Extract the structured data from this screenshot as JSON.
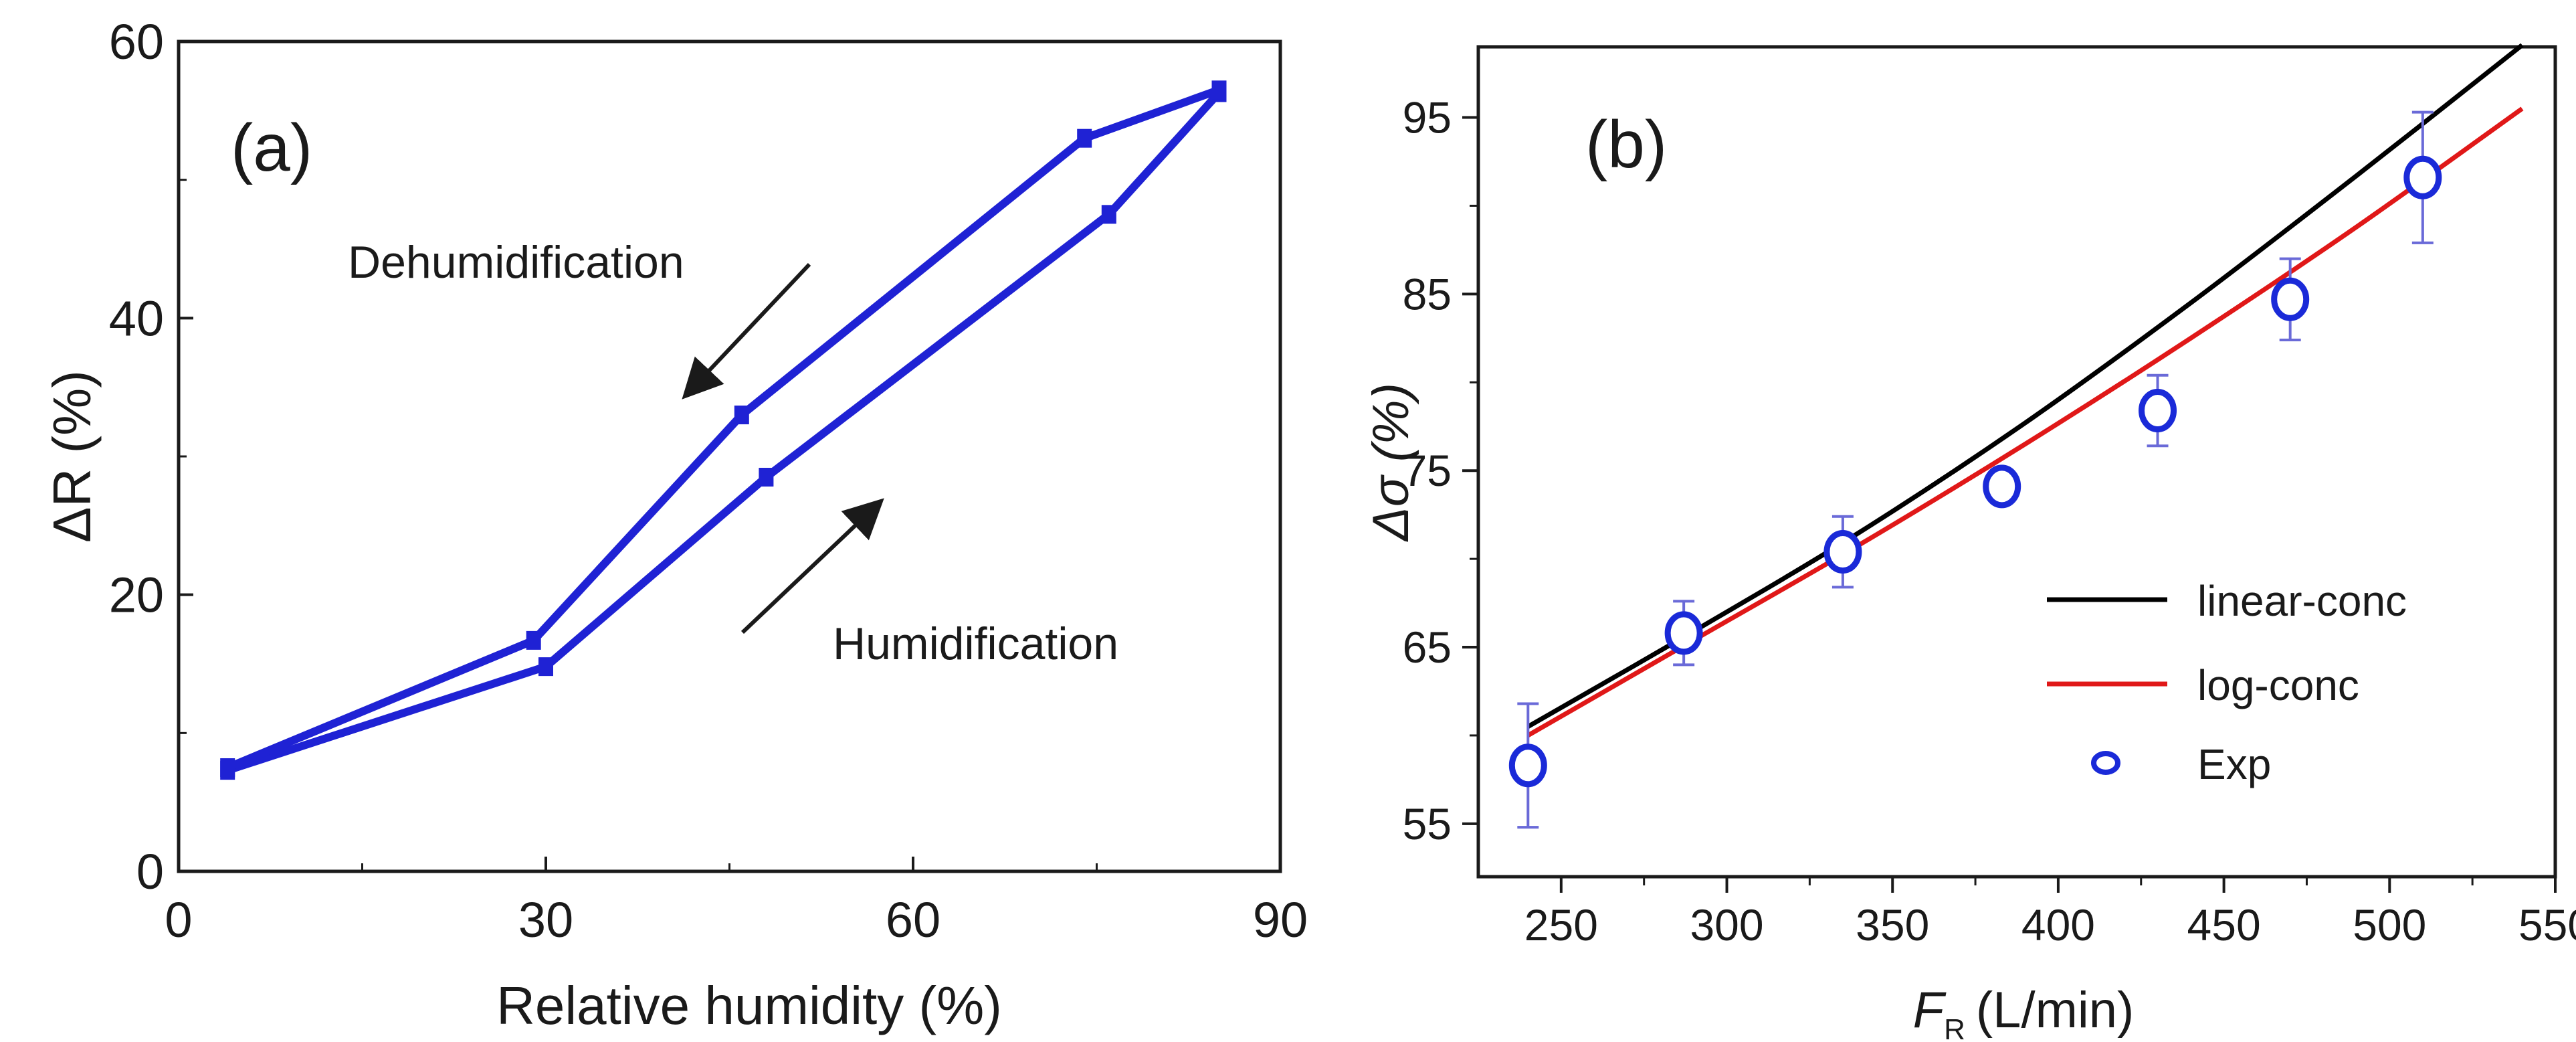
{
  "chart_data": [
    {
      "panel": "a",
      "type": "line",
      "panel_label": "(a)",
      "xlabel": "Relative humidity (%)",
      "ylabel": "ΔR (%)",
      "xlim": [
        0,
        90
      ],
      "ylim": [
        0,
        60
      ],
      "xticks": [
        0,
        30,
        60,
        90
      ],
      "yticks": [
        0,
        20,
        40,
        60
      ],
      "color": "#1f22d4",
      "series": [
        {
          "name": "Humidification",
          "x": [
            4,
            30,
            48,
            76,
            85
          ],
          "y": [
            7.3,
            14.8,
            28.5,
            47.5,
            56.3
          ]
        },
        {
          "name": "Dehumidification",
          "x": [
            85,
            74,
            46,
            29,
            4
          ],
          "y": [
            56.5,
            53,
            33,
            16.7,
            7.5
          ]
        }
      ],
      "annotations": [
        {
          "text": "Dehumidification",
          "arrow": "down-left"
        },
        {
          "text": "Humidification",
          "arrow": "up-right"
        }
      ]
    },
    {
      "panel": "b",
      "type": "line",
      "panel_label": "(b)",
      "xlabel_main": "F",
      "xlabel_sub": "R",
      "xlabel_rest": "(L/min)",
      "ylabel": "Δσ (%)",
      "xlim": [
        225,
        550
      ],
      "ylim": [
        52,
        99
      ],
      "xticks": [
        250,
        300,
        350,
        400,
        450,
        500,
        550
      ],
      "yticks": [
        55,
        65,
        75,
        85,
        95
      ],
      "series": [
        {
          "name": "linear-conc",
          "color": "#000000",
          "x": [
            240,
            290,
            340,
            390,
            440,
            490,
            540
          ],
          "y": [
            60.5,
            65.9,
            71.5,
            77.7,
            84.5,
            91.7,
            99.1
          ]
        },
        {
          "name": "log-conc",
          "color": "#e01818",
          "x": [
            240,
            290,
            340,
            390,
            440,
            490,
            540
          ],
          "y": [
            60.0,
            65.4,
            70.8,
            76.5,
            82.5,
            88.8,
            95.5
          ]
        },
        {
          "name": "Exp",
          "color": "#1a2ad8",
          "marker": "circle",
          "x": [
            240,
            287,
            335,
            383,
            430,
            470,
            510
          ],
          "y": [
            58.3,
            65.8,
            70.4,
            74.1,
            78.4,
            84.7,
            91.6
          ],
          "err": [
            3.5,
            1.8,
            2.0,
            0.5,
            2.0,
            2.3,
            3.7
          ]
        }
      ],
      "legend": [
        "linear-conc",
        "log-conc",
        "Exp"
      ]
    }
  ]
}
